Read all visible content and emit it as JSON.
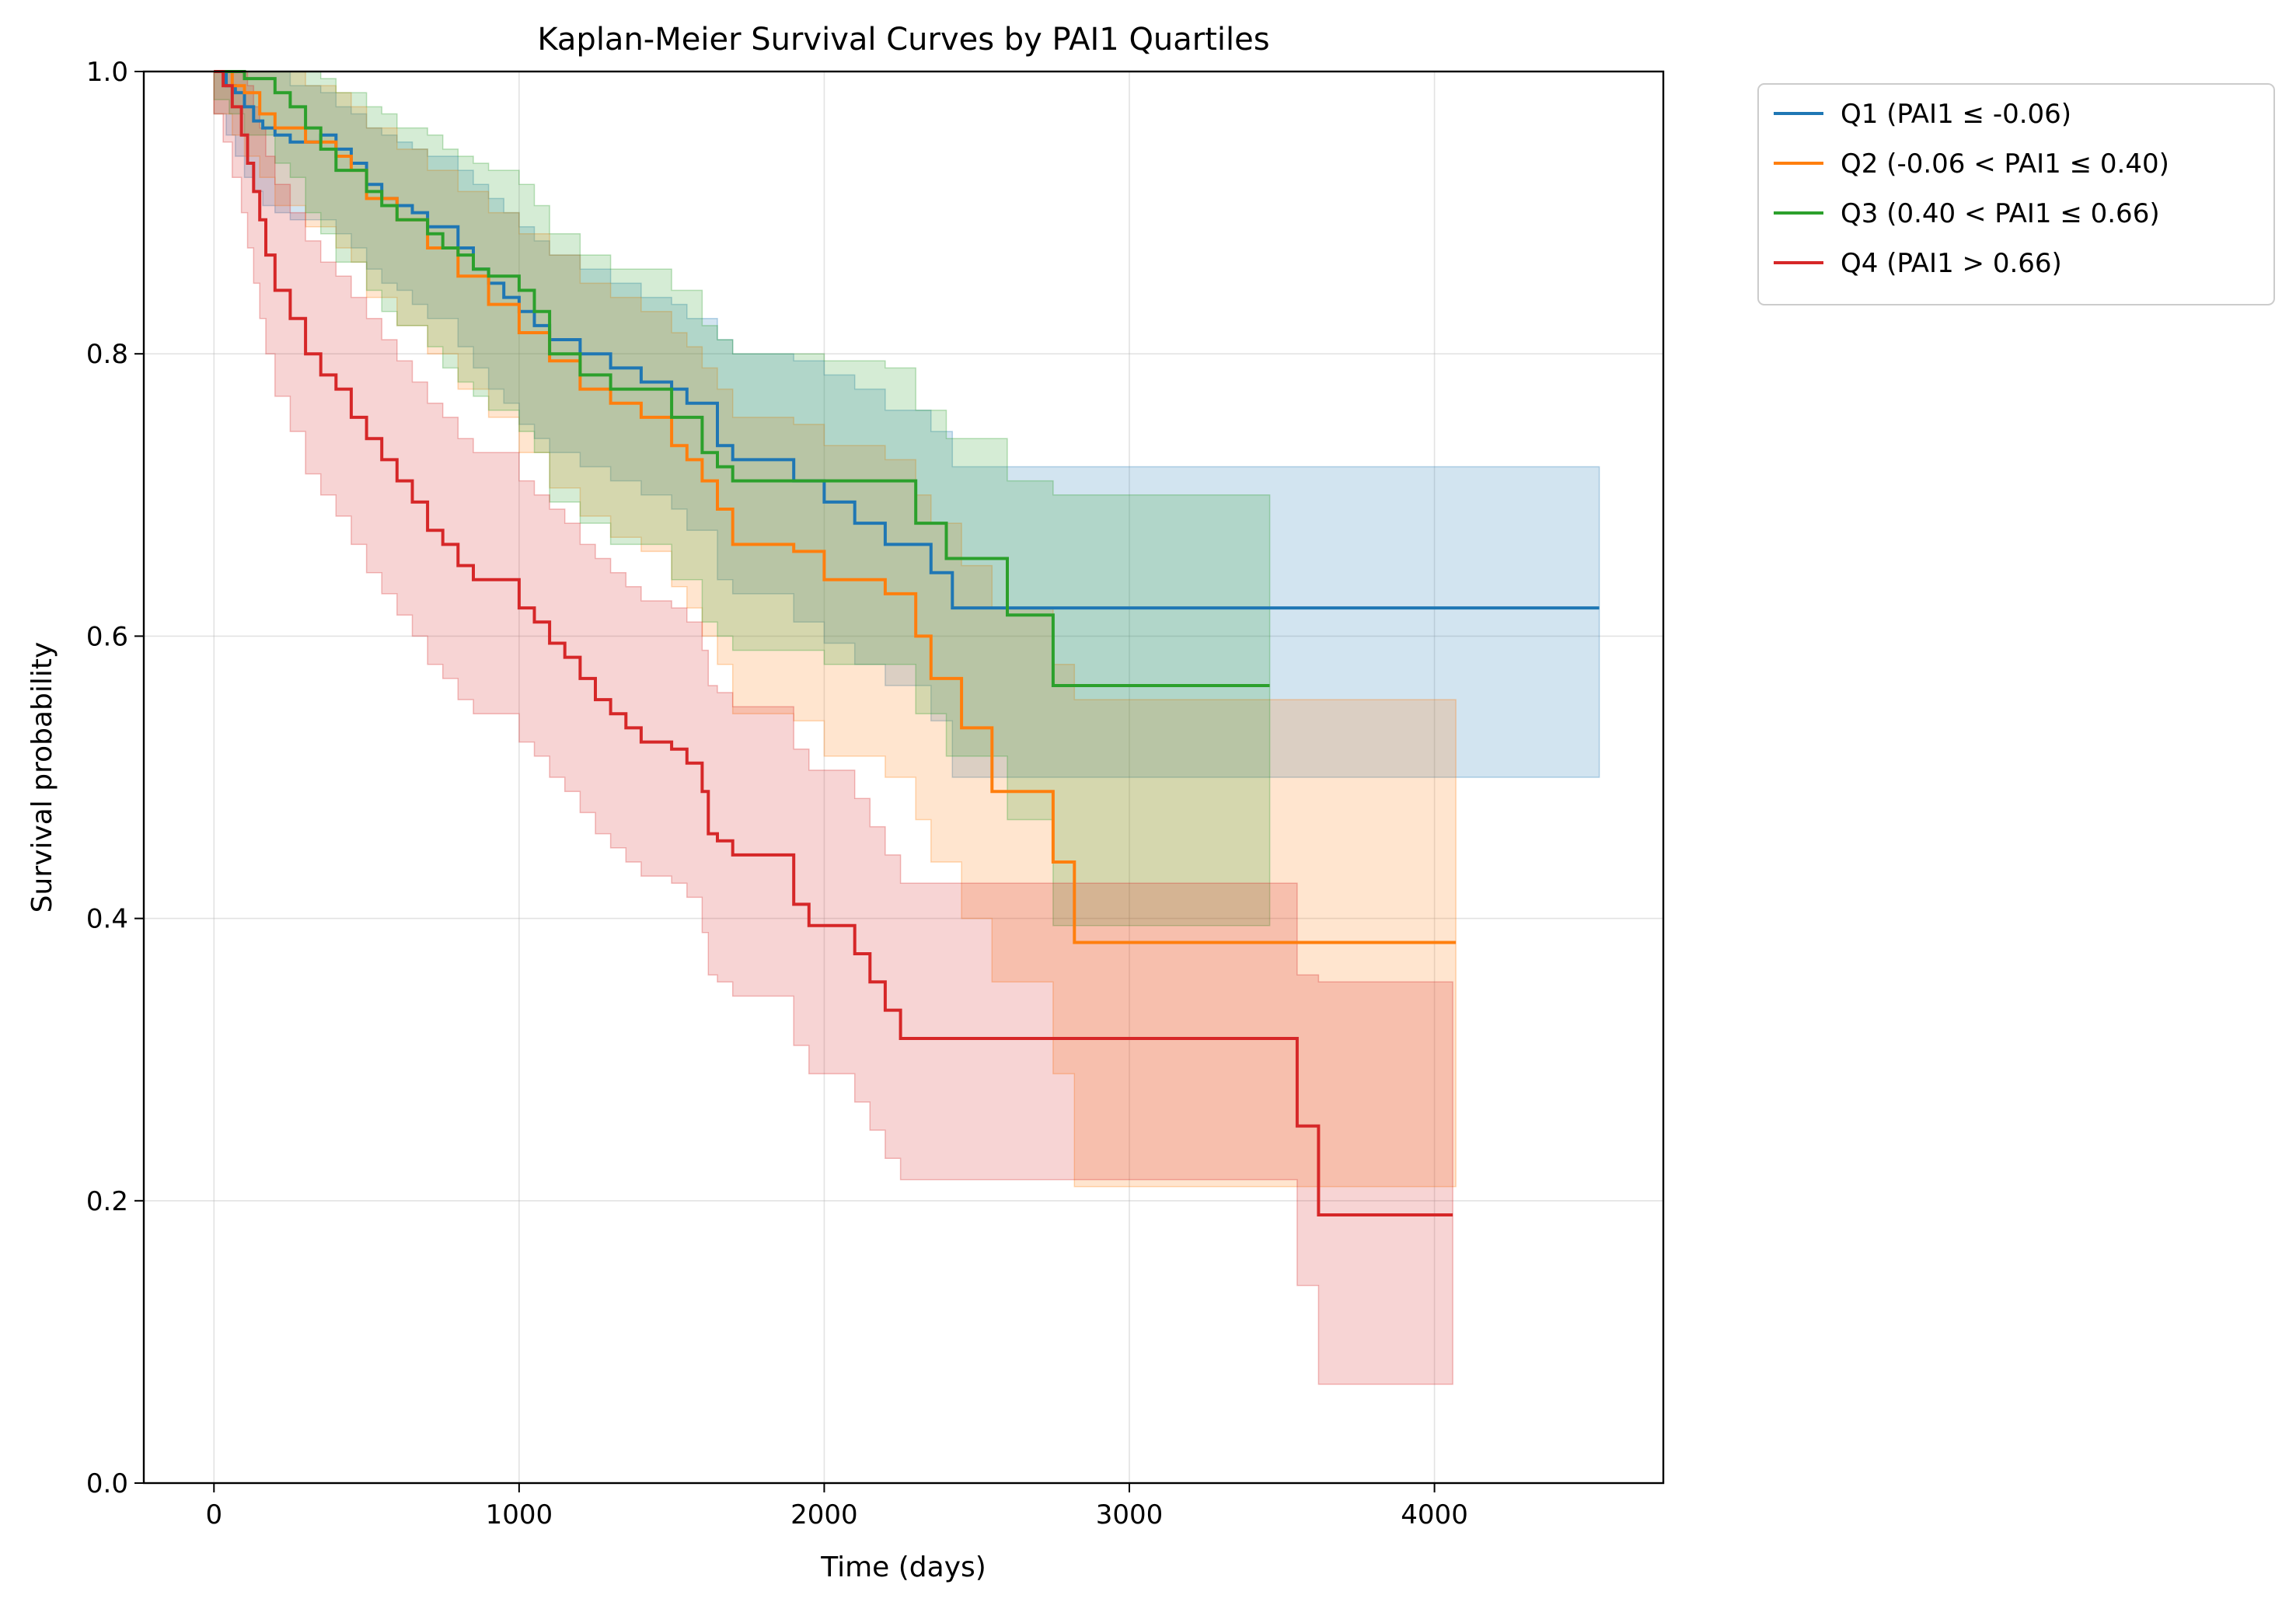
{
  "chart_data": {
    "type": "line",
    "title": "Kaplan-Meier Survival Curves by PAI1 Quartiles",
    "xlabel": "Time (days)",
    "ylabel": "Survival probability",
    "xlim": [
      -230,
      4750
    ],
    "ylim": [
      0.0,
      1.0
    ],
    "xticks": [
      "0",
      "1000",
      "2000",
      "3000",
      "4000"
    ],
    "yticks": [
      "0.0",
      "0.2",
      "0.4",
      "0.6",
      "0.8",
      "1.0"
    ],
    "grid": true,
    "legend_position": "outside top-right",
    "step": "post",
    "series": [
      {
        "name": "Q1 (PAI1 ≤ -0.06)",
        "color": "#1f77b4",
        "x": [
          0,
          40,
          70,
          100,
          130,
          160,
          200,
          250,
          300,
          350,
          400,
          450,
          500,
          550,
          600,
          650,
          700,
          800,
          850,
          900,
          950,
          1000,
          1050,
          1100,
          1200,
          1300,
          1400,
          1500,
          1550,
          1650,
          1700,
          1900,
          2000,
          2100,
          2200,
          2350,
          2420,
          2600,
          3000,
          4540
        ],
        "y": [
          1.0,
          0.99,
          0.985,
          0.975,
          0.965,
          0.96,
          0.955,
          0.95,
          0.95,
          0.955,
          0.945,
          0.935,
          0.92,
          0.91,
          0.905,
          0.9,
          0.89,
          0.875,
          0.86,
          0.85,
          0.84,
          0.83,
          0.82,
          0.81,
          0.8,
          0.79,
          0.78,
          0.775,
          0.765,
          0.735,
          0.725,
          0.71,
          0.695,
          0.68,
          0.665,
          0.645,
          0.62,
          0.62,
          0.62,
          0.62
        ],
        "ci_upper": [
          1.0,
          1.0,
          1.0,
          1.0,
          1.0,
          1.0,
          1.0,
          0.99,
          0.99,
          0.985,
          0.975,
          0.97,
          0.96,
          0.955,
          0.95,
          0.945,
          0.94,
          0.93,
          0.92,
          0.91,
          0.9,
          0.89,
          0.88,
          0.87,
          0.86,
          0.85,
          0.84,
          0.835,
          0.825,
          0.81,
          0.8,
          0.795,
          0.785,
          0.775,
          0.76,
          0.745,
          0.72,
          0.72,
          0.72,
          0.72
        ],
        "ci_lower": [
          0.97,
          0.955,
          0.94,
          0.925,
          0.915,
          0.905,
          0.9,
          0.895,
          0.895,
          0.895,
          0.885,
          0.875,
          0.86,
          0.85,
          0.845,
          0.835,
          0.825,
          0.805,
          0.79,
          0.775,
          0.765,
          0.75,
          0.74,
          0.73,
          0.72,
          0.71,
          0.7,
          0.69,
          0.675,
          0.64,
          0.63,
          0.61,
          0.595,
          0.58,
          0.565,
          0.54,
          0.5,
          0.5,
          0.5,
          0.5
        ]
      },
      {
        "name": "Q2 (-0.06 < PAI1 ≤ 0.40)",
        "color": "#ff7f0e",
        "x": [
          0,
          60,
          100,
          150,
          200,
          300,
          400,
          450,
          500,
          600,
          700,
          800,
          900,
          1000,
          1100,
          1200,
          1300,
          1400,
          1500,
          1550,
          1600,
          1650,
          1700,
          1900,
          2000,
          2200,
          2300,
          2350,
          2450,
          2550,
          2750,
          2820,
          3500,
          4070
        ],
        "y": [
          1.0,
          0.99,
          0.985,
          0.97,
          0.96,
          0.95,
          0.94,
          0.93,
          0.91,
          0.895,
          0.875,
          0.855,
          0.835,
          0.815,
          0.795,
          0.775,
          0.765,
          0.755,
          0.735,
          0.725,
          0.71,
          0.69,
          0.665,
          0.66,
          0.64,
          0.63,
          0.6,
          0.57,
          0.535,
          0.49,
          0.44,
          0.383,
          0.383,
          0.383
        ],
        "ci_upper": [
          1.0,
          1.0,
          1.0,
          1.0,
          1.0,
          0.99,
          0.985,
          0.975,
          0.96,
          0.945,
          0.93,
          0.915,
          0.9,
          0.885,
          0.87,
          0.85,
          0.84,
          0.83,
          0.815,
          0.805,
          0.79,
          0.775,
          0.755,
          0.75,
          0.735,
          0.725,
          0.7,
          0.68,
          0.65,
          0.62,
          0.58,
          0.555,
          0.555,
          0.555
        ],
        "ci_lower": [
          0.97,
          0.955,
          0.94,
          0.925,
          0.905,
          0.89,
          0.875,
          0.865,
          0.84,
          0.82,
          0.8,
          0.775,
          0.755,
          0.73,
          0.705,
          0.685,
          0.67,
          0.66,
          0.635,
          0.62,
          0.6,
          0.58,
          0.545,
          0.54,
          0.515,
          0.5,
          0.47,
          0.44,
          0.4,
          0.355,
          0.29,
          0.21,
          0.21,
          0.21
        ]
      },
      {
        "name": "Q3 (0.40 < PAI1 ≤ 0.66)",
        "color": "#2ca02c",
        "x": [
          0,
          50,
          100,
          200,
          250,
          300,
          350,
          400,
          500,
          550,
          600,
          700,
          750,
          800,
          850,
          900,
          1000,
          1050,
          1100,
          1200,
          1300,
          1500,
          1600,
          1650,
          1700,
          2000,
          2200,
          2300,
          2400,
          2600,
          2750,
          3460
        ],
        "y": [
          1.0,
          1.0,
          0.995,
          0.985,
          0.975,
          0.96,
          0.945,
          0.93,
          0.915,
          0.905,
          0.895,
          0.885,
          0.875,
          0.87,
          0.86,
          0.855,
          0.845,
          0.83,
          0.8,
          0.785,
          0.775,
          0.755,
          0.73,
          0.72,
          0.71,
          0.71,
          0.71,
          0.68,
          0.655,
          0.615,
          0.565,
          0.565
        ],
        "ci_upper": [
          1.0,
          1.0,
          1.0,
          1.0,
          1.0,
          1.0,
          0.995,
          0.985,
          0.975,
          0.97,
          0.96,
          0.955,
          0.945,
          0.94,
          0.935,
          0.93,
          0.92,
          0.905,
          0.885,
          0.87,
          0.86,
          0.845,
          0.82,
          0.81,
          0.8,
          0.795,
          0.79,
          0.76,
          0.74,
          0.71,
          0.7,
          0.7
        ],
        "ci_lower": [
          0.98,
          0.97,
          0.955,
          0.935,
          0.925,
          0.9,
          0.885,
          0.865,
          0.845,
          0.83,
          0.82,
          0.805,
          0.79,
          0.78,
          0.77,
          0.76,
          0.745,
          0.73,
          0.695,
          0.68,
          0.665,
          0.64,
          0.61,
          0.6,
          0.59,
          0.58,
          0.58,
          0.545,
          0.515,
          0.47,
          0.395,
          0.395
        ]
      },
      {
        "name": "Q4 (PAI1 > 0.66)",
        "color": "#d62728",
        "x": [
          0,
          30,
          60,
          90,
          110,
          130,
          150,
          170,
          200,
          250,
          300,
          350,
          400,
          450,
          500,
          550,
          600,
          650,
          700,
          750,
          800,
          850,
          1000,
          1050,
          1100,
          1150,
          1200,
          1250,
          1300,
          1350,
          1400,
          1450,
          1500,
          1550,
          1600,
          1620,
          1650,
          1700,
          1800,
          1900,
          1950,
          2100,
          2150,
          2200,
          2250,
          2400,
          3550,
          3620,
          4060
        ],
        "y": [
          1.0,
          0.99,
          0.975,
          0.955,
          0.935,
          0.915,
          0.895,
          0.87,
          0.845,
          0.825,
          0.8,
          0.785,
          0.775,
          0.755,
          0.74,
          0.725,
          0.71,
          0.695,
          0.675,
          0.665,
          0.65,
          0.64,
          0.62,
          0.61,
          0.595,
          0.585,
          0.57,
          0.555,
          0.545,
          0.535,
          0.525,
          0.525,
          0.52,
          0.51,
          0.49,
          0.46,
          0.455,
          0.445,
          0.445,
          0.41,
          0.395,
          0.375,
          0.355,
          0.335,
          0.315,
          0.315,
          0.253,
          0.19,
          0.19
        ],
        "ci_upper": [
          1.0,
          1.0,
          1.0,
          1.0,
          0.99,
          0.975,
          0.96,
          0.94,
          0.92,
          0.9,
          0.88,
          0.865,
          0.855,
          0.84,
          0.825,
          0.81,
          0.795,
          0.78,
          0.765,
          0.755,
          0.74,
          0.73,
          0.71,
          0.7,
          0.69,
          0.68,
          0.665,
          0.655,
          0.645,
          0.635,
          0.625,
          0.625,
          0.62,
          0.61,
          0.59,
          0.565,
          0.56,
          0.55,
          0.55,
          0.52,
          0.505,
          0.485,
          0.465,
          0.445,
          0.425,
          0.425,
          0.36,
          0.355,
          0.355
        ],
        "ci_lower": [
          0.97,
          0.95,
          0.925,
          0.9,
          0.875,
          0.85,
          0.825,
          0.8,
          0.77,
          0.745,
          0.715,
          0.7,
          0.685,
          0.665,
          0.645,
          0.63,
          0.615,
          0.6,
          0.58,
          0.57,
          0.555,
          0.545,
          0.525,
          0.515,
          0.5,
          0.49,
          0.475,
          0.46,
          0.45,
          0.44,
          0.43,
          0.43,
          0.425,
          0.415,
          0.39,
          0.36,
          0.355,
          0.345,
          0.345,
          0.31,
          0.29,
          0.27,
          0.25,
          0.23,
          0.215,
          0.215,
          0.14,
          0.07,
          0.07
        ]
      }
    ]
  }
}
